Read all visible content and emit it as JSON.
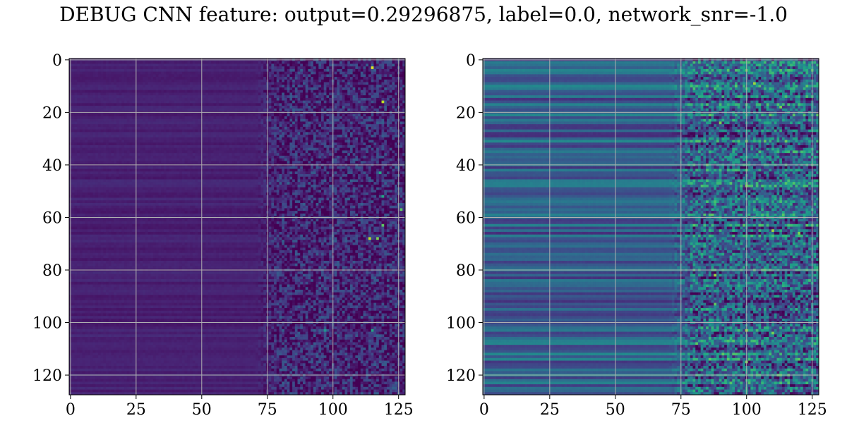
{
  "title": "DEBUG CNN feature: output=0.29296875, label=0.0, network_snr=-1.0",
  "chart_data": [
    {
      "type": "heatmap",
      "rows": 128,
      "cols": 128,
      "colormap": "viridis",
      "grid": true,
      "xlim": [
        -0.5,
        127.5
      ],
      "ylim": [
        127.5,
        -0.5
      ],
      "xticks": [
        0,
        25,
        50,
        75,
        100,
        125
      ],
      "xtick_labels": [
        "0",
        "25",
        "50",
        "75",
        "100",
        "125"
      ],
      "yticks": [
        0,
        20,
        40,
        60,
        80,
        100,
        120
      ],
      "ytick_labels": [
        "0",
        "20",
        "40",
        "60",
        "80",
        "100",
        "120"
      ],
      "base_level": 0.09,
      "noise_onset_col": 75,
      "noise_level": 0.35,
      "hotspots": [
        [
          3,
          115,
          0.95
        ],
        [
          16,
          119,
          0.9
        ],
        [
          43,
          118,
          0.6
        ],
        [
          52,
          119,
          0.6
        ],
        [
          57,
          126,
          0.75
        ],
        [
          63,
          119,
          0.75
        ],
        [
          68,
          114,
          0.9
        ],
        [
          68,
          117,
          0.8
        ],
        [
          103,
          115,
          0.6
        ],
        [
          103,
          97,
          0.5
        ]
      ]
    },
    {
      "type": "heatmap",
      "rows": 128,
      "cols": 128,
      "colormap": "viridis",
      "grid": true,
      "xlim": [
        -0.5,
        127.5
      ],
      "ylim": [
        127.5,
        -0.5
      ],
      "xticks": [
        0,
        25,
        50,
        75,
        100,
        125
      ],
      "xtick_labels": [
        "0",
        "25",
        "50",
        "75",
        "100",
        "125"
      ],
      "yticks": [
        0,
        20,
        40,
        60,
        80,
        100,
        120
      ],
      "ytick_labels": [
        "0",
        "20",
        "40",
        "60",
        "80",
        "100",
        "120"
      ],
      "base_level": 0.3,
      "noise_onset_col": 75,
      "noise_level": 0.55,
      "hotspots": [
        [
          9,
          103,
          0.85
        ],
        [
          18,
          113,
          0.8
        ],
        [
          24,
          90,
          0.8
        ],
        [
          40,
          85,
          0.75
        ],
        [
          48,
          100,
          0.8
        ],
        [
          65,
          110,
          0.85
        ],
        [
          66,
          120,
          0.8
        ],
        [
          82,
          88,
          0.85
        ],
        [
          93,
          88,
          0.75
        ],
        [
          103,
          100,
          0.85
        ],
        [
          104,
          110,
          0.8
        ],
        [
          115,
          100,
          0.8
        ]
      ]
    }
  ]
}
